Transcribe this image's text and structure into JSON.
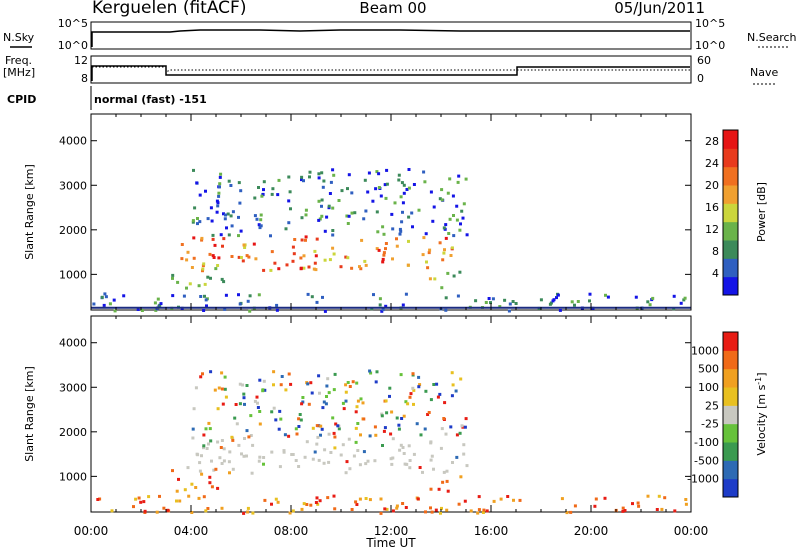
{
  "header": {
    "station": "Kerguelen (fitACF)",
    "beam": "Beam 00",
    "date": "05/Jun/2011"
  },
  "summary_panels": {
    "nsky": {
      "label": "N.Sky",
      "tick_top": "10^5",
      "tick_bottom": "10^0"
    },
    "nsearch": {
      "label": "N.Search",
      "tick_top": "10^5",
      "tick_bottom": "10^0"
    },
    "freq": {
      "label_line1": "Freq.",
      "label_line2": "[MHz]",
      "tick_top": "12",
      "tick_bottom": "8"
    },
    "nave": {
      "label": "Nave",
      "tick_top": "60",
      "tick_bottom": "0"
    },
    "cpid": {
      "label": "CPID",
      "value": "normal (fast) -151"
    }
  },
  "chart_data": [
    {
      "type": "heatmap",
      "name": "power",
      "ylabel": "Slant Range [km]",
      "xlabel": "",
      "x_ticks": [
        "00:00",
        "04:00",
        "08:00",
        "12:00",
        "16:00",
        "20:00",
        "00:00"
      ],
      "y_ticks": [
        "1000",
        "2000",
        "3000",
        "4000"
      ],
      "xlim_hours": [
        0,
        24
      ],
      "ylim_km": [
        200,
        4600
      ],
      "colorbar": {
        "label": "Power [dB]",
        "ticks": [
          "4",
          "8",
          "12",
          "16",
          "20",
          "24",
          "28"
        ],
        "range": [
          0,
          30
        ],
        "colors": [
          "#1414e6",
          "#2f5fc0",
          "#3c8a5a",
          "#6ab34a",
          "#cbd63c",
          "#f0a030",
          "#f07020",
          "#e83a1c",
          "#e61414"
        ]
      },
      "echo_regions": [
        {
          "t0": 3.5,
          "t1": 14.5,
          "r0": 1100,
          "r1": 1900,
          "level": "high"
        },
        {
          "t0": 3.2,
          "t1": 5.5,
          "r0": 700,
          "r1": 1200,
          "level": "mid"
        },
        {
          "t0": 4.0,
          "t1": 15.0,
          "r0": 1900,
          "r1": 3400,
          "level": "low"
        },
        {
          "t0": 13.5,
          "t1": 14.8,
          "r0": 700,
          "r1": 1100,
          "level": "mid"
        },
        {
          "t0": 0.0,
          "t1": 24.0,
          "r0": 200,
          "r1": 600,
          "level": "low"
        }
      ]
    },
    {
      "type": "heatmap",
      "name": "velocity",
      "ylabel": "Slant Range [km]",
      "xlabel": "Time UT",
      "x_ticks": [
        "00:00",
        "04:00",
        "08:00",
        "12:00",
        "16:00",
        "20:00",
        "00:00"
      ],
      "y_ticks": [
        "1000",
        "2000",
        "3000",
        "4000"
      ],
      "xlim_hours": [
        0,
        24
      ],
      "ylim_km": [
        200,
        4600
      ],
      "colorbar": {
        "label": "Velocity [m s",
        "label_sup": "-1",
        "label_end": "]",
        "ticks": [
          "1000",
          "500",
          "100",
          "25",
          "-25",
          "-100",
          "-500",
          "-1000"
        ],
        "colors": [
          "#1e3cc8",
          "#2d6ab4",
          "#3a9a50",
          "#66c23a",
          "#c8c8c0",
          "#e8c020",
          "#f0a020",
          "#f06a18",
          "#e81c14"
        ]
      },
      "echo_regions": [
        {
          "t0": 3.8,
          "t1": 15.0,
          "r0": 1100,
          "r1": 1900,
          "level": "ground"
        },
        {
          "t0": 3.2,
          "t1": 5.5,
          "r0": 700,
          "r1": 1200,
          "level": "neg"
        },
        {
          "t0": 4.0,
          "t1": 15.0,
          "r0": 1900,
          "r1": 3400,
          "level": "mixed"
        },
        {
          "t0": 13.5,
          "t1": 14.8,
          "r0": 700,
          "r1": 1100,
          "level": "neg"
        },
        {
          "t0": 0.0,
          "t1": 24.0,
          "r0": 200,
          "r1": 600,
          "level": "neg"
        }
      ]
    }
  ]
}
